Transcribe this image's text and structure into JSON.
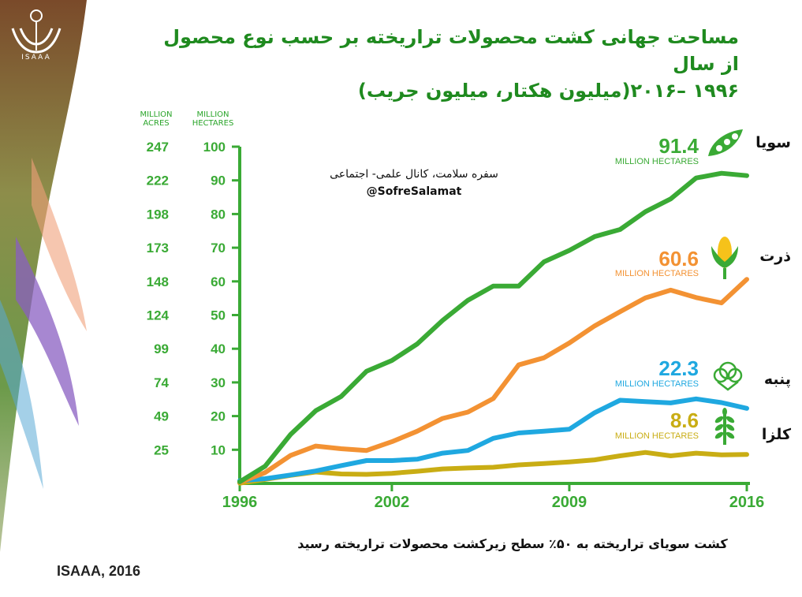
{
  "title_line1": "مساحت جهانی کشت محصولات تراریخته بر حسب نوع محصول از سال",
  "title_line2": "۱۹۹۶ –۲۰۱۶(میلیون هکتار، میلیون جریب)",
  "logo_text": "ISAAA",
  "watermark": {
    "line1": "سفره سلامت، کانال علمی- اجتماعی",
    "line2": "@SofreSalamat"
  },
  "footnote": "کشت سویای تراریخته به ۵۰٪ سطح زیرکشت محصولات تراریخته رسید",
  "source": "ISAAA, 2016",
  "colors": {
    "green": "#3aaa35",
    "orange": "#f39233",
    "blue": "#1fa8e0",
    "yellow": "#c9ad14",
    "axis": "#3aaa35"
  },
  "icons": [
    "soybean-pod-icon",
    "corn-icon",
    "cotton-icon",
    "canola-icon"
  ],
  "chart_data": {
    "type": "line",
    "x_ticks": [
      "1996",
      "2002",
      "2009",
      "2016"
    ],
    "xlim": [
      1996,
      2016
    ],
    "ylim": [
      0,
      100
    ],
    "y_unit_hectares": "MILLION\nHECTARES",
    "y_unit_acres": "MILLION\nACRES",
    "y_ticks_hectares": [
      "10",
      "20",
      "30",
      "40",
      "50",
      "60",
      "70",
      "80",
      "90",
      "100"
    ],
    "y_ticks_acres": [
      "25",
      "49",
      "74",
      "99",
      "124",
      "148",
      "173",
      "198",
      "222",
      "247"
    ],
    "x": [
      1996,
      1997,
      1998,
      1999,
      2000,
      2001,
      2002,
      2003,
      2004,
      2005,
      2006,
      2007,
      2008,
      2009,
      2010,
      2011,
      2012,
      2013,
      2014,
      2015,
      2016
    ],
    "series": [
      {
        "name": "سویا",
        "color_key": "green",
        "final_label": "91.4",
        "unit": "MILLION HECTARES",
        "values": [
          0.5,
          5.1,
          14.5,
          21.6,
          25.8,
          33.3,
          36.5,
          41.4,
          48.4,
          54.4,
          58.6,
          58.6,
          65.8,
          69.2,
          73.3,
          75.4,
          80.7,
          84.5,
          90.7,
          92.1,
          91.4
        ]
      },
      {
        "name": "ذرت",
        "color_key": "orange",
        "final_label": "60.6",
        "unit": "MILLION HECTARES",
        "values": [
          0.3,
          3.2,
          8.3,
          11.1,
          10.3,
          9.8,
          12.4,
          15.5,
          19.3,
          21.2,
          25.2,
          35.2,
          37.3,
          41.7,
          46.8,
          51.0,
          55.1,
          57.4,
          55.2,
          53.6,
          60.6
        ]
      },
      {
        "name": "پنبه",
        "color_key": "blue",
        "final_label": "22.3",
        "unit": "MILLION HECTARES",
        "values": [
          0.8,
          1.4,
          2.5,
          3.7,
          5.3,
          6.8,
          6.8,
          7.2,
          9.0,
          9.8,
          13.4,
          15.0,
          15.5,
          16.1,
          21.0,
          24.7,
          24.3,
          23.9,
          25.1,
          24.0,
          22.3
        ]
      },
      {
        "name": "کلزا",
        "color_key": "yellow",
        "final_label": "8.6",
        "unit": "MILLION HECTARES",
        "values": [
          0.1,
          1.2,
          2.4,
          3.4,
          2.8,
          2.7,
          3.0,
          3.6,
          4.3,
          4.6,
          4.8,
          5.5,
          5.9,
          6.4,
          7.0,
          8.2,
          9.2,
          8.2,
          9.0,
          8.5,
          8.6
        ]
      }
    ]
  }
}
